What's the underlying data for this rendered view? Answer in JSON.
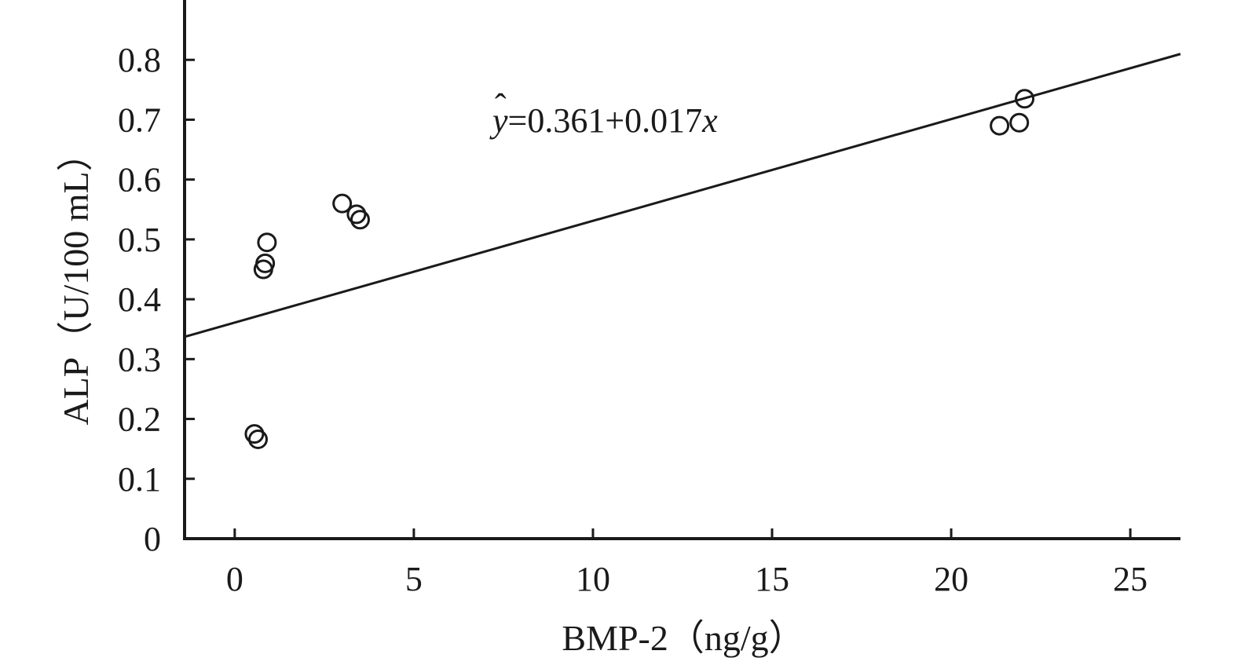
{
  "chart_data": {
    "type": "scatter",
    "title": "",
    "xlabel": "BMP-2（ng/g）",
    "ylabel": "ALP（U/100 mL）",
    "xlim": [
      -1.4,
      26.4
    ],
    "ylim": [
      0,
      0.9
    ],
    "x_ticks": [
      0,
      5,
      10,
      15,
      20,
      25
    ],
    "x_tick_labels": [
      "0",
      "5",
      "10",
      "15",
      "20",
      "25"
    ],
    "y_ticks": [
      0,
      0.1,
      0.2,
      0.3,
      0.4,
      0.5,
      0.6,
      0.7,
      0.8
    ],
    "y_tick_labels": [
      "0",
      "0.1",
      "0.2",
      "0.3",
      "0.4",
      "0.5",
      "0.6",
      "0.7",
      "0.8"
    ],
    "grid": false,
    "legend": "none",
    "points": [
      {
        "x": 0.55,
        "y": 0.175
      },
      {
        "x": 0.65,
        "y": 0.166
      },
      {
        "x": 0.8,
        "y": 0.45
      },
      {
        "x": 0.85,
        "y": 0.46
      },
      {
        "x": 0.9,
        "y": 0.495
      },
      {
        "x": 3.0,
        "y": 0.56
      },
      {
        "x": 3.4,
        "y": 0.542
      },
      {
        "x": 3.5,
        "y": 0.533
      },
      {
        "x": 21.35,
        "y": 0.69
      },
      {
        "x": 21.9,
        "y": 0.695
      },
      {
        "x": 22.05,
        "y": 0.735
      }
    ],
    "fit_line": {
      "intercept": 0.361,
      "slope": 0.017,
      "x_range": [
        -1.4,
        26.4
      ],
      "equation_prefix": "=0.361+0.017",
      "equation_y_symbol": "y",
      "equation_hat": "ˆ",
      "equation_x_symbol": "x"
    },
    "colors": {
      "axis": "#1a1a1a",
      "marker_stroke": "#1a1a1a",
      "line": "#1a1a1a"
    }
  }
}
